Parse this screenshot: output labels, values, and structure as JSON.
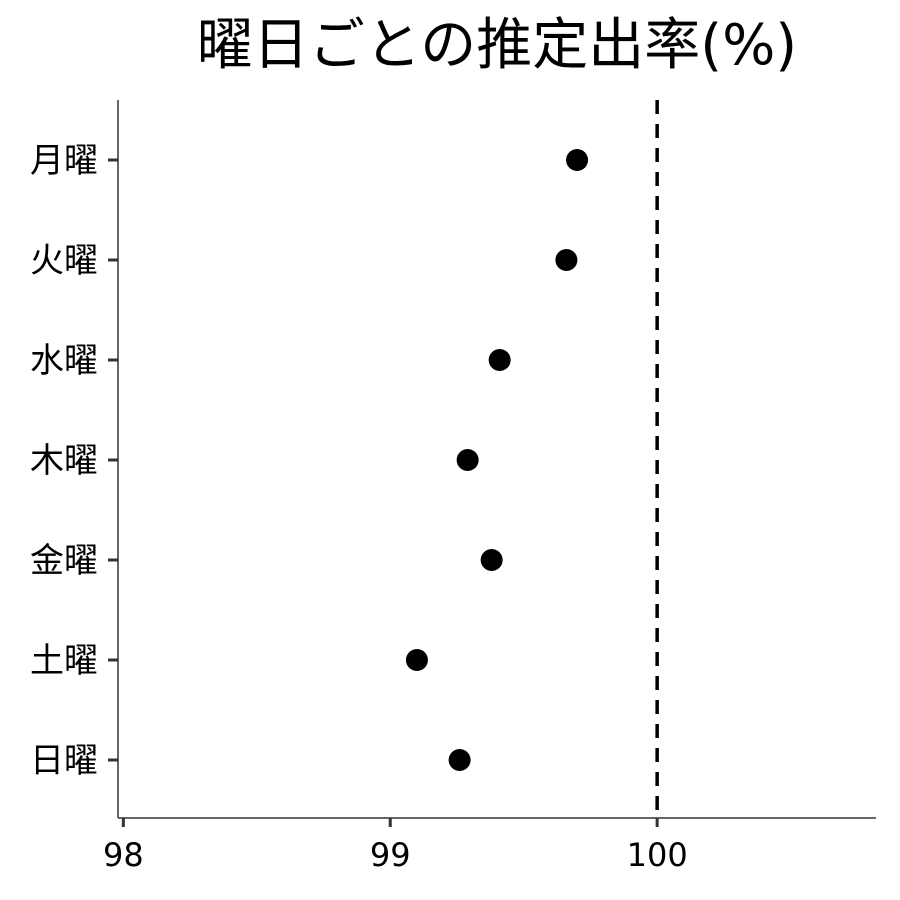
{
  "chart_data": {
    "type": "scatter",
    "title": "曜日ごとの推定出率(%)",
    "xlabel": "",
    "ylabel": "",
    "categories": [
      "月曜",
      "火曜",
      "水曜",
      "木曜",
      "金曜",
      "土曜",
      "日曜"
    ],
    "values": [
      99.7,
      99.66,
      99.41,
      99.29,
      99.38,
      99.1,
      99.26
    ],
    "xlim": [
      97.98,
      100.82
    ],
    "xticks": [
      98,
      99,
      100
    ],
    "reference_line": {
      "x": 100,
      "style": "dashed"
    },
    "grid": false,
    "legend": "none"
  },
  "colors": {
    "points": "#000000",
    "axis": "#333333",
    "reference_line": "#000000"
  }
}
